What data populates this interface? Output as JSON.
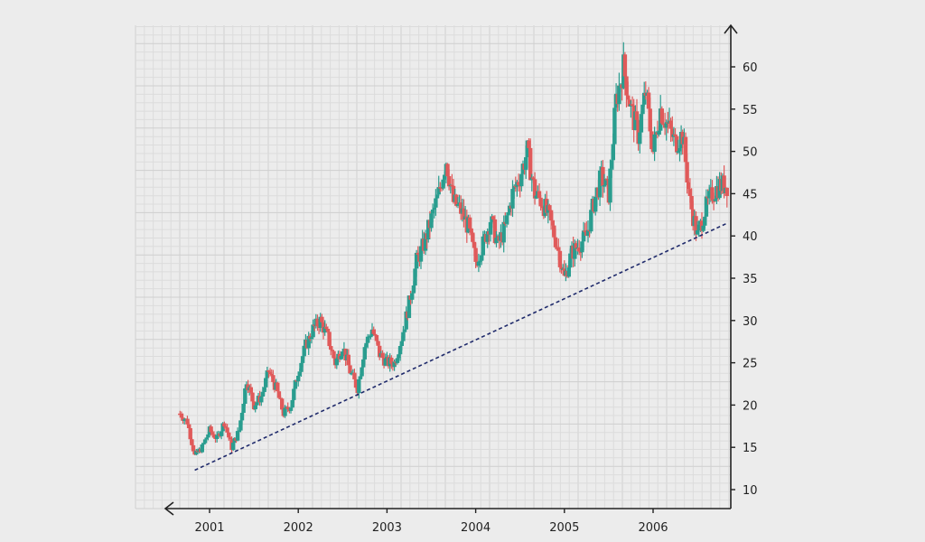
{
  "chart_data": {
    "type": "candlestick",
    "title": "",
    "xlabel": "",
    "ylabel": "",
    "ylim": [
      8,
      65
    ],
    "x_ticks": [
      "2001",
      "2002",
      "2003",
      "2004",
      "2005",
      "2006"
    ],
    "y_ticks": [
      10,
      15,
      20,
      25,
      30,
      35,
      40,
      45,
      50,
      55,
      60
    ],
    "y_axis_side": "right",
    "grid": true,
    "colors": {
      "up": "#2a9d8f",
      "down": "#e05a5a",
      "trendline": "#1f2a6b"
    },
    "series": [
      {
        "key": "price",
        "x": [
          "2000-09-01",
          "2000-10-01",
          "2000-11-01",
          "2000-12-01",
          "2001-01-01",
          "2001-02-01",
          "2001-03-01",
          "2001-04-01",
          "2001-05-01",
          "2001-06-01",
          "2001-07-01",
          "2001-08-01",
          "2001-09-01",
          "2001-10-01",
          "2001-11-01",
          "2001-12-01",
          "2002-01-01",
          "2002-02-01",
          "2002-03-01",
          "2002-04-01",
          "2002-05-01",
          "2002-06-01",
          "2002-07-01",
          "2002-08-01",
          "2002-09-01",
          "2002-10-01",
          "2002-11-01",
          "2002-12-01",
          "2003-01-01",
          "2003-02-01",
          "2003-03-01",
          "2003-04-01",
          "2003-05-01",
          "2003-06-01",
          "2003-07-01",
          "2003-08-01",
          "2003-09-01",
          "2003-10-01",
          "2003-11-01",
          "2003-12-01",
          "2004-01-01",
          "2004-02-01",
          "2004-03-01",
          "2004-04-01",
          "2004-05-01",
          "2004-06-01",
          "2004-07-01",
          "2004-08-01",
          "2004-09-01",
          "2004-10-01",
          "2004-11-01",
          "2004-12-01",
          "2005-01-01",
          "2005-02-01",
          "2005-03-01",
          "2005-04-01",
          "2005-05-01",
          "2005-06-01",
          "2005-07-01",
          "2005-08-01",
          "2005-09-01",
          "2005-10-01",
          "2005-11-01",
          "2005-12-01",
          "2006-01-01",
          "2006-02-01",
          "2006-03-01",
          "2006-04-01",
          "2006-05-01",
          "2006-06-01",
          "2006-07-01",
          "2006-08-01",
          "2006-09-01",
          "2006-10-01",
          "2006-11-01"
        ],
        "y": [
          19,
          18,
          14,
          15,
          17,
          16,
          18,
          15,
          17,
          23,
          20,
          21,
          24,
          22,
          19,
          20,
          24,
          27,
          29,
          30,
          28,
          25,
          27,
          24,
          22,
          27,
          29,
          26,
          25,
          25,
          28,
          32,
          37,
          39,
          42,
          45,
          49,
          44,
          43,
          41,
          37,
          39,
          42,
          39,
          41,
          45,
          47,
          50,
          45,
          44,
          42,
          39,
          35,
          38,
          39,
          40,
          44,
          47,
          45,
          56,
          60,
          55,
          52,
          57,
          50,
          55,
          53,
          51,
          52,
          44,
          40,
          43,
          45,
          46,
          46
        ]
      },
      {
        "key": "trendline",
        "x": [
          "2000-11-01",
          "2006-11-01"
        ],
        "y": [
          12.3,
          41.5
        ]
      }
    ]
  }
}
